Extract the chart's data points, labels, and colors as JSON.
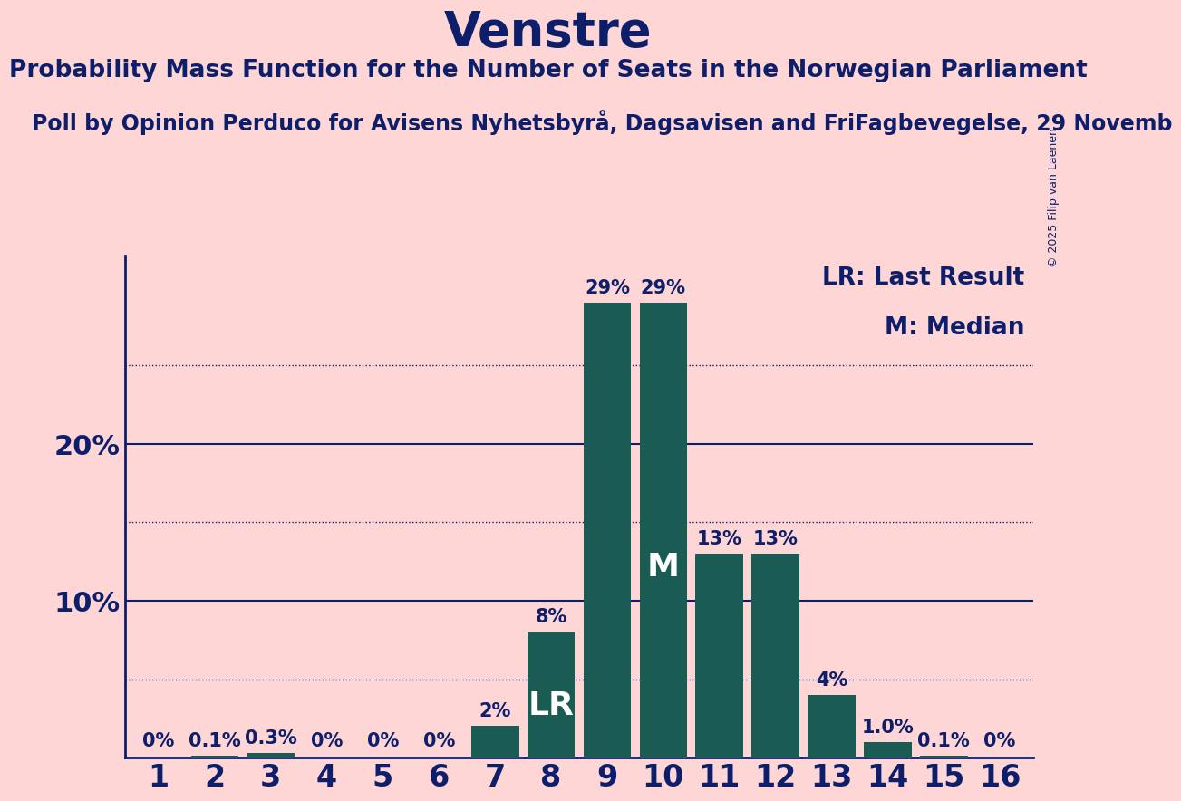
{
  "title": "Venstre",
  "subtitle": "Probability Mass Function for the Number of Seats in the Norwegian Parliament",
  "source_line": "Poll by Opinion Perduco for Avisens Nyhetsbyrå, Dagsavisen and FriFagbevegelse, 29 Novemb",
  "copyright": "© 2025 Filip van Laenen",
  "categories": [
    1,
    2,
    3,
    4,
    5,
    6,
    7,
    8,
    9,
    10,
    11,
    12,
    13,
    14,
    15,
    16
  ],
  "values": [
    0.0,
    0.1,
    0.3,
    0.0,
    0.0,
    0.0,
    2.0,
    8.0,
    29.0,
    29.0,
    13.0,
    13.0,
    4.0,
    1.0,
    0.1,
    0.0
  ],
  "bar_color": "#1a5c53",
  "background_color": "#ffd6d6",
  "text_color": "#0d1f6b",
  "title_fontsize": 38,
  "subtitle_fontsize": 19,
  "source_fontsize": 17,
  "bar_label_fontsize": 15,
  "axis_label_fontsize": 22,
  "tick_label_fontsize": 24,
  "legend_fontsize": 19,
  "special_label_fontsize": 26,
  "lr_bar": 8,
  "median_bar": 10,
  "ylim": [
    0,
    32
  ],
  "yticks": [
    10,
    20
  ],
  "ygrid_solid": [
    10,
    20
  ],
  "ygrid_dotted": [
    5,
    15,
    25
  ],
  "legend_texts": [
    "LR: Last Result",
    "M: Median"
  ],
  "special_labels": {
    "8": "LR",
    "10": "M"
  },
  "label_formats": {
    "1": "0%",
    "2": "0.1%",
    "3": "0.3%",
    "4": "0%",
    "5": "0%",
    "6": "0%",
    "7": "2%",
    "8": "8%",
    "9": "29%",
    "10": "29%",
    "11": "13%",
    "12": "13%",
    "13": "4%",
    "14": "1.0%",
    "15": "0.1%",
    "16": "0%"
  }
}
